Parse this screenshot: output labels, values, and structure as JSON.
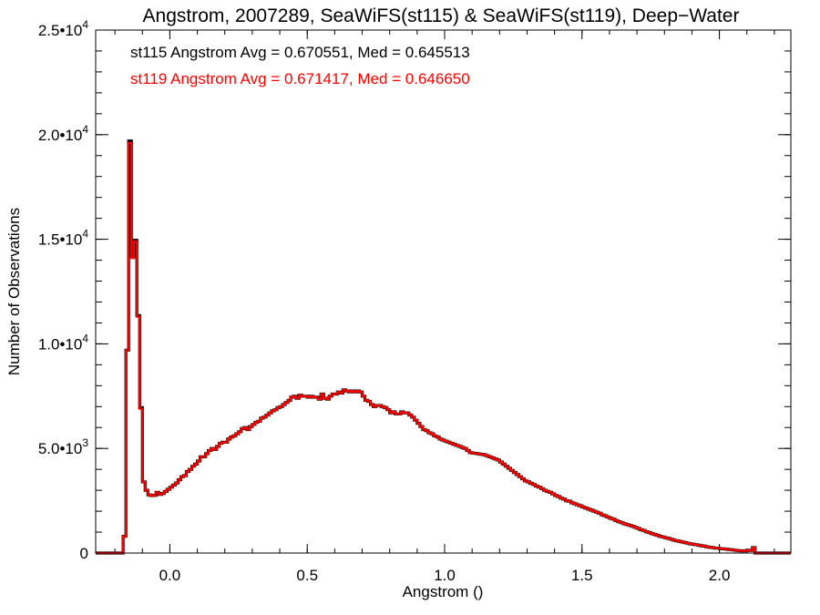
{
  "chart_data": {
    "type": "bar",
    "subtype": "step-histogram",
    "title": "Angstrom, 2007289, SeaWiFS(st115) & SeaWiFS(st119), Deep−Water",
    "xlabel": "Angstrom ()",
    "ylabel": "Number of Observations",
    "xlim": [
      -0.27,
      2.26
    ],
    "ylim": [
      0,
      25000
    ],
    "grid": false,
    "x_ticks": [
      {
        "value": 0.0,
        "label": "0.0"
      },
      {
        "value": 0.5,
        "label": "0.5"
      },
      {
        "value": 1.0,
        "label": "1.0"
      },
      {
        "value": 1.5,
        "label": "1.5"
      },
      {
        "value": 2.0,
        "label": "2.0"
      }
    ],
    "x_minor_step": 0.1,
    "y_ticks": [
      {
        "value": 0,
        "mantissa": "0",
        "exp": ""
      },
      {
        "value": 5000,
        "mantissa": "5.0•10",
        "exp": "3"
      },
      {
        "value": 10000,
        "mantissa": "1.0•10",
        "exp": "4"
      },
      {
        "value": 15000,
        "mantissa": "1.5•10",
        "exp": "4"
      },
      {
        "value": 20000,
        "mantissa": "2.0•10",
        "exp": "4"
      },
      {
        "value": 25000,
        "mantissa": "2.5•10",
        "exp": "4"
      }
    ],
    "y_minor_step": 1000,
    "bin_start": -0.17,
    "bin_width": 0.01,
    "annotations": [
      {
        "text": "st115 Angstrom Avg = 0.670551, Med = 0.645513",
        "color": "#000000"
      },
      {
        "text": "st119 Angstrom Avg = 0.671417, Med = 0.646650",
        "color": "#ff0000"
      }
    ],
    "series": [
      {
        "name": "st115",
        "color": "#000000",
        "values": [
          800,
          9700,
          19700,
          14200,
          14950,
          11350,
          6950,
          3400,
          3000,
          2780,
          2750,
          2760,
          2900,
          2800,
          2850,
          2950,
          3050,
          3150,
          3250,
          3350,
          3500,
          3650,
          3700,
          3900,
          4000,
          4150,
          4250,
          4400,
          4600,
          4600,
          4750,
          4900,
          5000,
          4950,
          5100,
          5250,
          5300,
          5300,
          5450,
          5550,
          5600,
          5700,
          5800,
          5950,
          6000,
          5900,
          6050,
          6150,
          6250,
          6300,
          6450,
          6500,
          6600,
          6700,
          6800,
          6850,
          6950,
          7000,
          7100,
          7200,
          7300,
          7450,
          7500,
          7400,
          7550,
          7500,
          7500,
          7450,
          7500,
          7450,
          7450,
          7350,
          7600,
          7400,
          7350,
          7500,
          7600,
          7600,
          7700,
          7650,
          7800,
          7750,
          7700,
          7750,
          7700,
          7750,
          7700,
          7500,
          7300,
          7250,
          7100,
          7000,
          7050,
          7050,
          7000,
          6950,
          6850,
          6700,
          6750,
          6650,
          6650,
          6750,
          6700,
          6700,
          6600,
          6500,
          6350,
          6200,
          6050,
          5900,
          5850,
          5750,
          5700,
          5600,
          5550,
          5450,
          5400,
          5350,
          5300,
          5250,
          5200,
          5150,
          5100,
          5050,
          5000,
          4900,
          4800,
          4780,
          4760,
          4740,
          4720,
          4700,
          4650,
          4600,
          4550,
          4500,
          4450,
          4350,
          4250,
          4150,
          4050,
          3950,
          3850,
          3750,
          3650,
          3550,
          3450,
          3400,
          3330,
          3280,
          3200,
          3150,
          3080,
          3000,
          2950,
          2900,
          2830,
          2750,
          2700,
          2620,
          2580,
          2500,
          2480,
          2400,
          2350,
          2300,
          2260,
          2200,
          2150,
          2100,
          2050,
          2000,
          1950,
          1900,
          1820,
          1780,
          1720,
          1660,
          1620,
          1550,
          1500,
          1450,
          1400,
          1360,
          1320,
          1280,
          1230,
          1180,
          1120,
          1080,
          1020,
          980,
          930,
          890,
          850,
          800,
          770,
          730,
          700,
          660,
          620,
          590,
          560,
          530,
          500,
          470,
          440,
          420,
          400,
          380,
          350,
          330,
          300,
          280,
          260,
          240,
          230,
          210,
          200,
          190,
          170,
          160,
          140,
          120,
          110,
          100,
          110,
          130,
          120,
          260
        ]
      },
      {
        "name": "st119",
        "color": "#ff0000",
        "values": [
          800,
          9700,
          19600,
          14100,
          14900,
          11300,
          6900,
          3400,
          3000,
          2780,
          2750,
          2760,
          2900,
          2800,
          2850,
          2950,
          3050,
          3150,
          3250,
          3350,
          3500,
          3650,
          3700,
          3900,
          4000,
          4150,
          4250,
          4400,
          4600,
          4600,
          4750,
          4900,
          5000,
          4950,
          5100,
          5250,
          5300,
          5300,
          5450,
          5550,
          5600,
          5700,
          5800,
          5950,
          6000,
          5900,
          6050,
          6150,
          6250,
          6300,
          6450,
          6500,
          6600,
          6700,
          6800,
          6850,
          6950,
          7000,
          7100,
          7200,
          7300,
          7450,
          7500,
          7400,
          7550,
          7500,
          7500,
          7450,
          7500,
          7450,
          7450,
          7350,
          7600,
          7400,
          7350,
          7500,
          7600,
          7600,
          7700,
          7650,
          7800,
          7750,
          7700,
          7750,
          7700,
          7750,
          7700,
          7500,
          7300,
          7250,
          7100,
          7000,
          7050,
          7050,
          7000,
          6950,
          6850,
          6700,
          6750,
          6650,
          6650,
          6750,
          6700,
          6700,
          6600,
          6500,
          6350,
          6200,
          6050,
          5900,
          5850,
          5750,
          5700,
          5600,
          5550,
          5450,
          5400,
          5350,
          5300,
          5250,
          5200,
          5150,
          5100,
          5050,
          5000,
          4900,
          4800,
          4780,
          4760,
          4740,
          4720,
          4700,
          4650,
          4600,
          4550,
          4500,
          4450,
          4350,
          4250,
          4150,
          4050,
          3950,
          3850,
          3750,
          3650,
          3550,
          3450,
          3400,
          3330,
          3280,
          3200,
          3150,
          3080,
          3000,
          2950,
          2900,
          2830,
          2750,
          2700,
          2620,
          2580,
          2500,
          2480,
          2400,
          2350,
          2300,
          2260,
          2200,
          2150,
          2100,
          2050,
          2000,
          1950,
          1900,
          1820,
          1780,
          1720,
          1660,
          1620,
          1550,
          1500,
          1450,
          1400,
          1360,
          1320,
          1280,
          1230,
          1180,
          1120,
          1080,
          1020,
          980,
          930,
          890,
          850,
          800,
          770,
          730,
          700,
          660,
          620,
          590,
          560,
          530,
          500,
          470,
          440,
          420,
          400,
          380,
          350,
          330,
          300,
          280,
          260,
          240,
          230,
          210,
          200,
          190,
          170,
          160,
          140,
          120,
          110,
          100,
          110,
          130,
          120,
          260
        ]
      }
    ]
  }
}
